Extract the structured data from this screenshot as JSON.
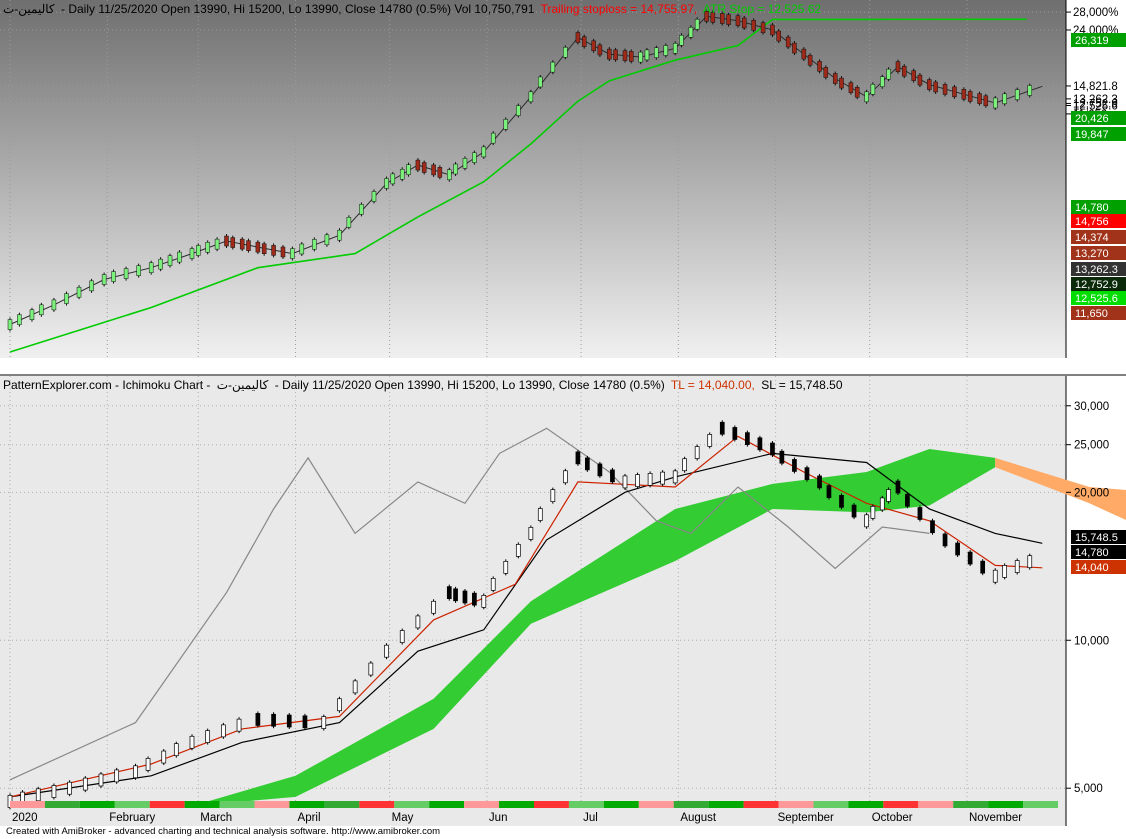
{
  "top_panel": {
    "symbol": "كاليمين-ت",
    "header_main": "- Daily 11/25/2020 Open 13990, Hi 15200, Lo 13990, Close 14780 (0.5%) Vol 10,750,791",
    "header_trailing": "Trailing stoploss = 14,755.97,",
    "header_atr": "ATR Stop = 12,525.62",
    "colors": {
      "background_top": "#6f6f6f",
      "background_bottom": "#f2f2f2",
      "trailing": "#ff0000",
      "atr": "#00cc00"
    }
  },
  "bottom_panel": {
    "header_prefix": "PatternExplorer.com - Ichimoku Chart -",
    "symbol": "كاليمين-ت",
    "header_main": "- Daily 11/25/2020 Open 13990, Hi 15200, Lo 13990, Close 14780 (0.5%)",
    "header_tl": "TL = 14,040.00,",
    "header_sl": "SL = 15,748.50",
    "colors": {
      "cloud_bull": "#33cc33",
      "cloud_bear": "#ffaa66",
      "tenkan": "#cc2200",
      "kijun": "#000000",
      "chikou": "#888888"
    }
  },
  "footer": "Created with AmiBroker - advanced charting and technical analysis software. http://www.amibroker.com",
  "chart_data": [
    {
      "type": "candlestick",
      "title": "Daily 11/25/2020 Open 13990, Hi 15200, Lo 13990, Close 14780 (0.5%) Vol 10,750,791",
      "x_month_labels": [
        "2020",
        "February",
        "March",
        "April",
        "May",
        "Jun",
        "Jul",
        "August",
        "September",
        "October",
        "November"
      ],
      "y_scale": "log",
      "y_ticks": [
        "28,000%",
        "24,000%",
        "14,821.8",
        "13,262.3",
        "12,752.9",
        "12,525.6",
        "11,650"
      ],
      "y_tick_values": [
        28000,
        24000,
        14821.8,
        13262.3,
        12752.9,
        12525.6,
        11650
      ],
      "value_tags": [
        {
          "label": "26,319",
          "color": "#00a000"
        },
        {
          "label": "20,426",
          "color": "#00a000"
        },
        {
          "label": "19,847",
          "color": "#00a000"
        },
        {
          "label": "14,780",
          "color": "#00a000"
        },
        {
          "label": "14,756",
          "color": "#ff0000"
        },
        {
          "label": "14,374",
          "color": "#a0331a"
        },
        {
          "label": "13,270",
          "color": "#a0331a"
        },
        {
          "label": "13,262.3",
          "color": "#333333"
        },
        {
          "label": "12,752.9",
          "color": "#0a2a0a"
        },
        {
          "label": "12,525.6",
          "color": "#00dd00"
        },
        {
          "label": "11,650",
          "color": "#a0331a"
        }
      ],
      "ylim": [
        1500,
        29000
      ],
      "close_path": [
        [
          "2020-01-01",
          1900
        ],
        [
          "2020-01-15",
          2250
        ],
        [
          "2020-01-31",
          2800
        ],
        [
          "2020-02-15",
          3100
        ],
        [
          "2020-02-28",
          3500
        ],
        [
          "2020-03-10",
          3900
        ],
        [
          "2020-03-20",
          3700
        ],
        [
          "2020-03-31",
          3500
        ],
        [
          "2020-04-15",
          4100
        ],
        [
          "2020-04-30",
          6400
        ],
        [
          "2020-05-10",
          7500
        ],
        [
          "2020-05-20",
          6900
        ],
        [
          "2020-05-31",
          8400
        ],
        [
          "2020-06-15",
          13500
        ],
        [
          "2020-06-30",
          22500
        ],
        [
          "2020-07-10",
          19500
        ],
        [
          "2020-07-20",
          19000
        ],
        [
          "2020-07-31",
          20500
        ],
        [
          "2020-08-10",
          27000
        ],
        [
          "2020-08-20",
          26000
        ],
        [
          "2020-08-31",
          24000
        ],
        [
          "2020-09-10",
          19500
        ],
        [
          "2020-09-20",
          15800
        ],
        [
          "2020-09-30",
          13500
        ],
        [
          "2020-10-10",
          17500
        ],
        [
          "2020-10-20",
          15000
        ],
        [
          "2020-10-31",
          13800
        ],
        [
          "2020-11-10",
          12800
        ],
        [
          "2020-11-25",
          14780
        ]
      ],
      "atr_stop_path": [
        [
          "2020-01-01",
          1500
        ],
        [
          "2020-02-15",
          2200
        ],
        [
          "2020-03-20",
          3100
        ],
        [
          "2020-04-20",
          3500
        ],
        [
          "2020-05-10",
          4800
        ],
        [
          "2020-05-31",
          6500
        ],
        [
          "2020-06-15",
          9000
        ],
        [
          "2020-06-30",
          13000
        ],
        [
          "2020-07-10",
          15500
        ],
        [
          "2020-07-31",
          18500
        ],
        [
          "2020-08-20",
          21000
        ],
        [
          "2020-08-31",
          26300
        ],
        [
          "2020-09-15",
          26300
        ],
        [
          "2020-09-30",
          26300
        ],
        [
          "2020-11-20",
          26319
        ]
      ]
    },
    {
      "type": "ichimoku",
      "title": "Ichimoku Chart - Daily 11/25/2020 Open 13990, Hi 15200, Lo 13990, Close 14780 (0.5%)",
      "x_month_labels": [
        "2020",
        "February",
        "March",
        "April",
        "May",
        "Jun",
        "Jul",
        "August",
        "September",
        "October",
        "November"
      ],
      "y_scale": "log",
      "y_ticks": [
        30000,
        25000,
        20000,
        10000,
        5000
      ],
      "y_tick_labels": [
        "30,000",
        "25,000",
        "20,000",
        "10,000",
        "5,000"
      ],
      "ylim": [
        4600,
        32000
      ],
      "value_tags": [
        {
          "label": "15,748.5",
          "color": "#000000"
        },
        {
          "label": "14,780",
          "color": "#000000"
        },
        {
          "label": "14,040",
          "color": "#cc3300"
        }
      ],
      "close_path": [
        [
          "2020-01-01",
          4700
        ],
        [
          "2020-01-20",
          5000
        ],
        [
          "2020-02-10",
          5400
        ],
        [
          "2020-02-28",
          6200
        ],
        [
          "2020-03-20",
          6900
        ],
        [
          "2020-04-10",
          6800
        ],
        [
          "2020-04-30",
          9500
        ],
        [
          "2020-05-20",
          12500
        ],
        [
          "2020-05-31",
          12000
        ],
        [
          "2020-06-15",
          16500
        ],
        [
          "2020-06-30",
          23500
        ],
        [
          "2020-07-15",
          21000
        ],
        [
          "2020-07-31",
          21500
        ],
        [
          "2020-08-15",
          27000
        ],
        [
          "2020-08-31",
          24500
        ],
        [
          "2020-09-15",
          21000
        ],
        [
          "2020-09-30",
          17500
        ],
        [
          "2020-10-10",
          20500
        ],
        [
          "2020-10-25",
          16000
        ],
        [
          "2020-11-10",
          13500
        ],
        [
          "2020-11-25",
          14780
        ]
      ],
      "tenkan_path": [
        [
          "2020-01-01",
          4800
        ],
        [
          "2020-02-15",
          5600
        ],
        [
          "2020-03-15",
          6600
        ],
        [
          "2020-04-15",
          7000
        ],
        [
          "2020-05-15",
          11000
        ],
        [
          "2020-06-10",
          13000
        ],
        [
          "2020-06-30",
          21000
        ],
        [
          "2020-07-31",
          20500
        ],
        [
          "2020-08-20",
          26000
        ],
        [
          "2020-09-10",
          22000
        ],
        [
          "2020-09-30",
          19000
        ],
        [
          "2020-10-20",
          17500
        ],
        [
          "2020-11-10",
          14200
        ],
        [
          "2020-11-25",
          14040
        ]
      ],
      "kijun_path": [
        [
          "2020-01-01",
          4800
        ],
        [
          "2020-02-15",
          5300
        ],
        [
          "2020-03-15",
          6200
        ],
        [
          "2020-04-15",
          6800
        ],
        [
          "2020-05-10",
          9500
        ],
        [
          "2020-05-31",
          10500
        ],
        [
          "2020-06-20",
          16000
        ],
        [
          "2020-07-15",
          20000
        ],
        [
          "2020-07-31",
          21500
        ],
        [
          "2020-08-31",
          24000
        ],
        [
          "2020-09-30",
          23000
        ],
        [
          "2020-10-20",
          18500
        ],
        [
          "2020-11-10",
          16500
        ],
        [
          "2020-11-25",
          15748.5
        ]
      ],
      "chikou_path": [
        [
          "2020-01-01",
          5200
        ],
        [
          "2020-02-10",
          6800
        ],
        [
          "2020-03-10",
          12500
        ],
        [
          "2020-03-25",
          18500
        ],
        [
          "2020-04-05",
          23500
        ],
        [
          "2020-04-20",
          16500
        ],
        [
          "2020-05-10",
          21000
        ],
        [
          "2020-05-25",
          19000
        ],
        [
          "2020-06-05",
          24000
        ],
        [
          "2020-06-20",
          27000
        ],
        [
          "2020-07-10",
          22000
        ],
        [
          "2020-07-25",
          17500
        ],
        [
          "2020-08-05",
          16500
        ],
        [
          "2020-08-20",
          20500
        ],
        [
          "2020-09-05",
          17000
        ],
        [
          "2020-09-20",
          14000
        ],
        [
          "2020-10-05",
          17000
        ],
        [
          "2020-10-20",
          16500
        ]
      ],
      "cloud_upper": [
        [
          "2020-02-28",
          4600
        ],
        [
          "2020-04-01",
          5300
        ],
        [
          "2020-05-15",
          7600
        ],
        [
          "2020-06-15",
          12000
        ],
        [
          "2020-07-31",
          18500
        ],
        [
          "2020-08-31",
          20800
        ],
        [
          "2020-09-30",
          22000
        ],
        [
          "2020-10-20",
          24500
        ],
        [
          "2020-11-10",
          23500
        ]
      ],
      "cloud_lower": [
        [
          "2020-02-28",
          4600
        ],
        [
          "2020-04-01",
          4800
        ],
        [
          "2020-05-15",
          6600
        ],
        [
          "2020-06-15",
          10800
        ],
        [
          "2020-07-31",
          14500
        ],
        [
          "2020-08-31",
          18500
        ],
        [
          "2020-09-30",
          18200
        ],
        [
          "2020-10-20",
          18800
        ],
        [
          "2020-11-10",
          22500
        ]
      ],
      "cloud_future_upper": [
        [
          "2020-11-10",
          23500
        ],
        [
          "2020-12-10",
          20500
        ],
        [
          "2020-12-31",
          20000
        ]
      ],
      "cloud_future_lower": [
        [
          "2020-11-10",
          22500
        ],
        [
          "2020-12-10",
          19000
        ],
        [
          "2020-12-31",
          16500
        ]
      ]
    }
  ]
}
